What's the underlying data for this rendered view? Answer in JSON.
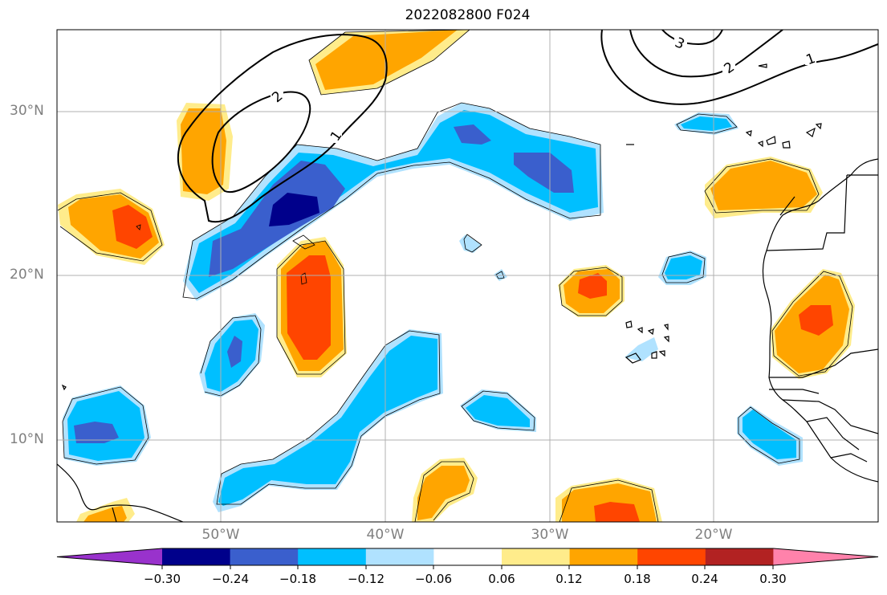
{
  "title": "2022082800 F024",
  "lat_labels": [
    "30°N",
    "20°N",
    "10°N"
  ],
  "lon_labels": [
    "50°W",
    "40°W",
    "30°W",
    "20°W"
  ],
  "colorbar": {
    "ticks": [
      "−0.30",
      "−0.24",
      "−0.18",
      "−0.12",
      "−0.06",
      "0.06",
      "0.12",
      "0.18",
      "0.24",
      "0.30"
    ],
    "colors": [
      "#9932cc",
      "#00008b",
      "#3a5fcd",
      "#00bfff",
      "#b0e2ff",
      "#ffffff",
      "#ffec8b",
      "#ffa500",
      "#ff4500",
      "#b22222",
      "#ff82ab"
    ]
  },
  "contour_labels": [
    "1",
    "2",
    "3",
    "2",
    "1"
  ],
  "palette": {
    "light_yellow": "#ffec8b",
    "orange": "#ffa500",
    "red_orange": "#ff4500",
    "light_blue": "#b0e2ff",
    "sky_blue": "#00bfff",
    "royal_blue": "#3a5fcd",
    "navy": "#00008b",
    "grid": "#b0b0b0"
  }
}
